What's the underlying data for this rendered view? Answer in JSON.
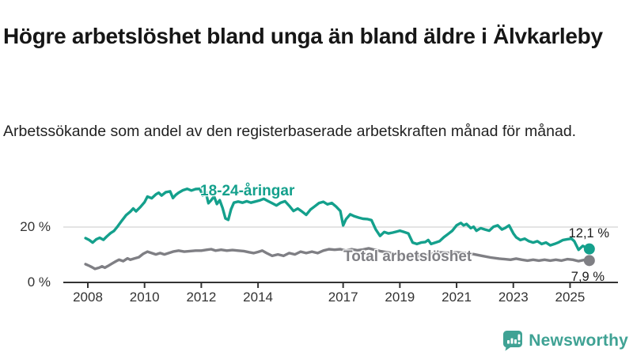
{
  "header": {
    "title": "Högre arbetslöshet bland unga än bland äldre i Älvkarleby",
    "subtitle": "Arbetssökande som andel av den registerbaserade arbetskraften månad för månad."
  },
  "branding": {
    "logo_text": "Newsworthy",
    "logo_color": "#3FA294",
    "logo_icon": "bar-chart-speech-bubble-icon"
  },
  "colors": {
    "youth_line": "#14A08C",
    "total_line": "#7F7F84",
    "gridline": "#DCDCDC",
    "axis": "#333333",
    "text": "#1A1A1A"
  },
  "chart_data": {
    "type": "line",
    "title": "Högre arbetslöshet bland unga än bland äldre i Älvkarleby",
    "subtitle": "Arbetssökande som andel av den registerbaserade arbetskraften månad för månad.",
    "xlabel": "",
    "ylabel": "",
    "grid": "horizontal-at-20-only",
    "legend_position": "inline-labels-on-lines",
    "x_range": [
      2007.1,
      2026.7
    ],
    "ylim": [
      0,
      38
    ],
    "x_ticks": [
      2008,
      2010,
      2012,
      2014,
      2017,
      2019,
      2021,
      2023,
      2025
    ],
    "y_ticks": [
      {
        "value": 0,
        "label": "0 %"
      },
      {
        "value": 20,
        "label": "20 %"
      }
    ],
    "series": [
      {
        "name": "18-24-åringar",
        "color": "#14A08C",
        "end_value": 12.1,
        "end_label": "12,1 %",
        "points": [
          [
            2007.92,
            16.0
          ],
          [
            2008.05,
            15.3
          ],
          [
            2008.17,
            14.4
          ],
          [
            2008.3,
            15.6
          ],
          [
            2008.42,
            16.1
          ],
          [
            2008.55,
            15.4
          ],
          [
            2008.67,
            16.6
          ],
          [
            2008.8,
            17.8
          ],
          [
            2008.92,
            18.6
          ],
          [
            2009.05,
            20.2
          ],
          [
            2009.2,
            22.3
          ],
          [
            2009.35,
            24.3
          ],
          [
            2009.5,
            25.6
          ],
          [
            2009.6,
            26.7
          ],
          [
            2009.7,
            25.7
          ],
          [
            2009.85,
            27.2
          ],
          [
            2010.0,
            29.0
          ],
          [
            2010.1,
            31.0
          ],
          [
            2010.25,
            30.4
          ],
          [
            2010.4,
            31.8
          ],
          [
            2010.5,
            32.4
          ],
          [
            2010.6,
            31.4
          ],
          [
            2010.75,
            32.6
          ],
          [
            2010.9,
            32.9
          ],
          [
            2011.0,
            30.5
          ],
          [
            2011.1,
            31.6
          ],
          [
            2011.2,
            32.4
          ],
          [
            2011.35,
            33.3
          ],
          [
            2011.5,
            33.8
          ],
          [
            2011.65,
            33.2
          ],
          [
            2011.8,
            33.7
          ],
          [
            2011.95,
            33.8
          ],
          [
            2012.05,
            31.4
          ],
          [
            2012.15,
            32.9
          ],
          [
            2012.25,
            28.6
          ],
          [
            2012.35,
            29.7
          ],
          [
            2012.45,
            31.1
          ],
          [
            2012.55,
            28.3
          ],
          [
            2012.65,
            29.7
          ],
          [
            2012.75,
            26.9
          ],
          [
            2012.85,
            23.1
          ],
          [
            2012.95,
            22.6
          ],
          [
            2013.05,
            26.4
          ],
          [
            2013.15,
            28.8
          ],
          [
            2013.3,
            29.2
          ],
          [
            2013.45,
            28.8
          ],
          [
            2013.6,
            29.3
          ],
          [
            2013.75,
            28.8
          ],
          [
            2013.9,
            29.2
          ],
          [
            2014.05,
            29.6
          ],
          [
            2014.2,
            30.2
          ],
          [
            2014.35,
            29.4
          ],
          [
            2014.5,
            28.6
          ],
          [
            2014.65,
            27.8
          ],
          [
            2014.8,
            28.8
          ],
          [
            2014.95,
            29.3
          ],
          [
            2015.1,
            27.7
          ],
          [
            2015.25,
            25.8
          ],
          [
            2015.4,
            26.7
          ],
          [
            2015.55,
            25.6
          ],
          [
            2015.7,
            24.4
          ],
          [
            2015.85,
            26.3
          ],
          [
            2016.0,
            27.5
          ],
          [
            2016.15,
            28.7
          ],
          [
            2016.3,
            29.1
          ],
          [
            2016.45,
            28.2
          ],
          [
            2016.6,
            28.7
          ],
          [
            2016.75,
            27.4
          ],
          [
            2016.9,
            25.8
          ],
          [
            2017.0,
            20.6
          ],
          [
            2017.1,
            22.8
          ],
          [
            2017.25,
            24.6
          ],
          [
            2017.4,
            23.9
          ],
          [
            2017.55,
            23.4
          ],
          [
            2017.7,
            23.0
          ],
          [
            2017.85,
            22.9
          ],
          [
            2018.0,
            22.5
          ],
          [
            2018.15,
            19.1
          ],
          [
            2018.3,
            16.8
          ],
          [
            2018.45,
            18.2
          ],
          [
            2018.6,
            17.7
          ],
          [
            2018.75,
            18.0
          ],
          [
            2018.9,
            18.4
          ],
          [
            2019.0,
            18.7
          ],
          [
            2019.15,
            18.2
          ],
          [
            2019.3,
            17.7
          ],
          [
            2019.45,
            14.4
          ],
          [
            2019.6,
            13.9
          ],
          [
            2019.75,
            14.4
          ],
          [
            2019.9,
            14.6
          ],
          [
            2020.0,
            15.3
          ],
          [
            2020.1,
            13.9
          ],
          [
            2020.25,
            14.4
          ],
          [
            2020.4,
            14.9
          ],
          [
            2020.55,
            16.3
          ],
          [
            2020.7,
            17.5
          ],
          [
            2020.85,
            18.7
          ],
          [
            2021.0,
            20.6
          ],
          [
            2021.15,
            21.5
          ],
          [
            2021.25,
            20.6
          ],
          [
            2021.35,
            21.1
          ],
          [
            2021.5,
            19.6
          ],
          [
            2021.6,
            20.1
          ],
          [
            2021.7,
            18.7
          ],
          [
            2021.85,
            19.6
          ],
          [
            2022.0,
            19.1
          ],
          [
            2022.15,
            18.7
          ],
          [
            2022.3,
            20.1
          ],
          [
            2022.45,
            20.6
          ],
          [
            2022.6,
            19.1
          ],
          [
            2022.7,
            19.6
          ],
          [
            2022.85,
            20.6
          ],
          [
            2023.0,
            17.7
          ],
          [
            2023.1,
            16.3
          ],
          [
            2023.25,
            15.3
          ],
          [
            2023.4,
            15.8
          ],
          [
            2023.55,
            14.9
          ],
          [
            2023.7,
            14.4
          ],
          [
            2023.85,
            14.9
          ],
          [
            2024.0,
            13.9
          ],
          [
            2024.15,
            14.4
          ],
          [
            2024.3,
            13.4
          ],
          [
            2024.45,
            13.9
          ],
          [
            2024.6,
            14.5
          ],
          [
            2024.75,
            15.3
          ],
          [
            2024.9,
            15.6
          ],
          [
            2025.05,
            15.8
          ],
          [
            2025.15,
            14.9
          ],
          [
            2025.3,
            11.8
          ],
          [
            2025.45,
            13.2
          ],
          [
            2025.55,
            12.6
          ],
          [
            2025.68,
            12.1
          ]
        ]
      },
      {
        "name": "Total arbetslöshet",
        "color": "#7F7F84",
        "end_value": 7.9,
        "end_label": "7,9 %",
        "points": [
          [
            2007.92,
            6.6
          ],
          [
            2008.05,
            6.0
          ],
          [
            2008.15,
            5.5
          ],
          [
            2008.25,
            4.9
          ],
          [
            2008.4,
            5.3
          ],
          [
            2008.5,
            5.8
          ],
          [
            2008.6,
            5.3
          ],
          [
            2008.7,
            5.9
          ],
          [
            2008.85,
            6.8
          ],
          [
            2009.0,
            7.7
          ],
          [
            2009.1,
            8.2
          ],
          [
            2009.25,
            7.7
          ],
          [
            2009.4,
            8.7
          ],
          [
            2009.5,
            8.2
          ],
          [
            2009.65,
            8.7
          ],
          [
            2009.8,
            9.1
          ],
          [
            2009.95,
            10.3
          ],
          [
            2010.1,
            11.1
          ],
          [
            2010.25,
            10.6
          ],
          [
            2010.4,
            10.1
          ],
          [
            2010.55,
            10.6
          ],
          [
            2010.7,
            10.1
          ],
          [
            2010.85,
            10.6
          ],
          [
            2011.0,
            11.1
          ],
          [
            2011.2,
            11.5
          ],
          [
            2011.4,
            11.1
          ],
          [
            2011.6,
            11.3
          ],
          [
            2011.8,
            11.5
          ],
          [
            2012.0,
            11.5
          ],
          [
            2012.2,
            11.8
          ],
          [
            2012.35,
            12.0
          ],
          [
            2012.5,
            11.5
          ],
          [
            2012.7,
            11.8
          ],
          [
            2012.9,
            11.5
          ],
          [
            2013.1,
            11.7
          ],
          [
            2013.3,
            11.5
          ],
          [
            2013.5,
            11.3
          ],
          [
            2013.7,
            10.9
          ],
          [
            2013.85,
            10.6
          ],
          [
            2014.0,
            11.0
          ],
          [
            2014.15,
            11.5
          ],
          [
            2014.3,
            10.6
          ],
          [
            2014.5,
            9.6
          ],
          [
            2014.7,
            10.1
          ],
          [
            2014.9,
            9.6
          ],
          [
            2015.1,
            10.6
          ],
          [
            2015.3,
            10.1
          ],
          [
            2015.5,
            11.1
          ],
          [
            2015.7,
            10.6
          ],
          [
            2015.9,
            11.1
          ],
          [
            2016.1,
            10.6
          ],
          [
            2016.3,
            11.5
          ],
          [
            2016.5,
            12.0
          ],
          [
            2016.7,
            11.8
          ],
          [
            2016.9,
            12.0
          ],
          [
            2017.1,
            11.5
          ],
          [
            2017.3,
            12.0
          ],
          [
            2017.5,
            11.6
          ],
          [
            2017.7,
            11.9
          ],
          [
            2017.9,
            12.3
          ],
          [
            2018.1,
            11.8
          ],
          [
            2018.3,
            11.3
          ],
          [
            2018.6,
            10.8
          ],
          [
            2018.9,
            10.2
          ],
          [
            2019.2,
            9.7
          ],
          [
            2019.5,
            9.4
          ],
          [
            2019.8,
            9.6
          ],
          [
            2020.1,
            10.3
          ],
          [
            2020.4,
            10.9
          ],
          [
            2020.7,
            10.7
          ],
          [
            2021.0,
            10.9
          ],
          [
            2021.3,
            10.6
          ],
          [
            2021.6,
            10.2
          ],
          [
            2021.9,
            9.6
          ],
          [
            2022.2,
            9.0
          ],
          [
            2022.5,
            8.6
          ],
          [
            2022.7,
            8.4
          ],
          [
            2022.9,
            8.2
          ],
          [
            2023.1,
            8.6
          ],
          [
            2023.3,
            8.2
          ],
          [
            2023.5,
            7.9
          ],
          [
            2023.7,
            8.2
          ],
          [
            2023.9,
            7.9
          ],
          [
            2024.1,
            8.2
          ],
          [
            2024.3,
            7.9
          ],
          [
            2024.5,
            8.2
          ],
          [
            2024.7,
            7.9
          ],
          [
            2024.9,
            8.4
          ],
          [
            2025.1,
            8.2
          ],
          [
            2025.3,
            7.7
          ],
          [
            2025.5,
            8.1
          ],
          [
            2025.68,
            7.9
          ]
        ]
      }
    ]
  }
}
